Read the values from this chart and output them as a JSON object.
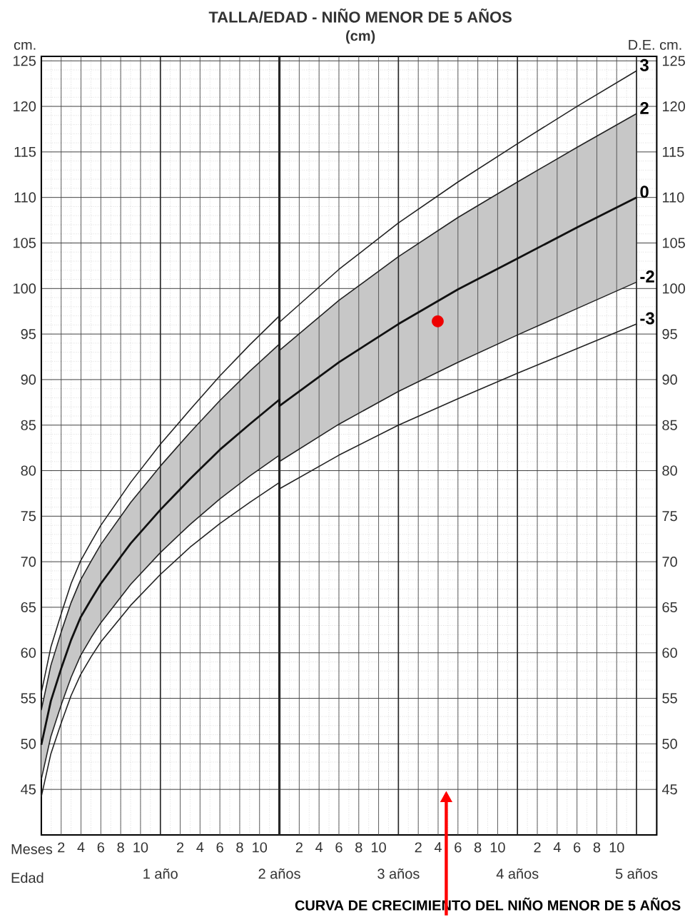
{
  "chart_data": {
    "type": "line",
    "title": "TALLA/EDAD - **NIÑO** MENOR DE 5 AÑOS",
    "subtitle": "(cm)",
    "ylabel": "cm.",
    "y2label": "D.E. cm.",
    "annotations": [
      "Meses",
      "Edad",
      "CURVA DE CRECIMIENTO DEL NIÑO MENOR DE 5 AÑOS",
      "2",
      "4",
      "6",
      "8",
      "10",
      "2",
      "4",
      "6",
      "8",
      "10",
      "2",
      "4",
      "6",
      "8",
      "10",
      "2",
      "4",
      "6",
      "8",
      "10",
      "2",
      "4",
      "6",
      "8",
      "10"
    ],
    "xlim": [
      0,
      5.17
    ],
    "ylim": [
      40,
      125.5
    ],
    "y2lim": [
      40,
      125.5
    ],
    "xticks": [
      {
        "value": 0,
        "label": null
      },
      {
        "value": 1,
        "label": "1 año"
      },
      {
        "value": 2,
        "label": "2 años"
      },
      {
        "value": 3,
        "label": "3 años"
      },
      {
        "value": 4,
        "label": "4 años"
      },
      {
        "value": 5,
        "label": "5 años"
      }
    ],
    "yticks": [
      45,
      50,
      55,
      60,
      65,
      70,
      75,
      80,
      85,
      90,
      95,
      100,
      105,
      110,
      115,
      120,
      125
    ],
    "y2ticks": [
      45,
      50,
      55,
      60,
      65,
      70,
      75,
      80,
      85,
      90,
      95,
      100,
      105,
      110,
      115,
      120,
      125
    ],
    "grid": true,
    "line_style": "solid",
    "ref_lines": [
      {
        "axis": "x",
        "value": 2,
        "color": "#262626"
      }
    ],
    "series": [
      {
        "name": "3",
        "color": "#222222",
        "x": [
          0,
          0.08,
          0.17,
          0.25,
          0.33,
          0.42,
          0.5,
          0.75,
          1,
          1.25,
          1.5,
          1.75,
          2,
          2,
          2.5,
          3,
          3.5,
          4,
          4.5,
          5
        ],
        "values": [
          55.6,
          60.6,
          64.4,
          67.6,
          70.1,
          72.2,
          74.0,
          78.7,
          82.9,
          86.7,
          90.4,
          93.8,
          97.0,
          96.3,
          102.1,
          107.2,
          111.7,
          115.9,
          120.0,
          123.9
        ]
      },
      {
        "name": "2",
        "color": "#222222",
        "x": [
          0,
          0.08,
          0.17,
          0.25,
          0.33,
          0.42,
          0.5,
          0.75,
          1,
          1.25,
          1.5,
          1.75,
          2,
          2,
          2.5,
          3,
          3.5,
          4,
          4.5,
          5
        ],
        "values": [
          53.7,
          58.6,
          62.4,
          65.5,
          68.0,
          70.1,
          71.9,
          76.5,
          80.5,
          84.2,
          87.7,
          90.9,
          93.9,
          93.2,
          98.7,
          103.5,
          107.8,
          111.7,
          115.5,
          119.2
        ]
      },
      {
        "name": "0",
        "color": "#111111",
        "x": [
          0,
          0.08,
          0.17,
          0.25,
          0.33,
          0.42,
          0.5,
          0.75,
          1,
          1.25,
          1.5,
          1.75,
          2,
          2,
          2.5,
          3,
          3.5,
          4,
          4.5,
          5
        ],
        "values": [
          49.9,
          54.7,
          58.4,
          61.4,
          63.9,
          65.9,
          67.6,
          72.0,
          75.7,
          79.1,
          82.3,
          85.1,
          87.8,
          87.1,
          91.9,
          96.1,
          99.9,
          103.3,
          106.7,
          110.0
        ],
        "lower": [
          46.1,
          50.8,
          54.4,
          57.3,
          59.7,
          61.7,
          63.3,
          67.5,
          71.0,
          74.1,
          76.9,
          79.4,
          81.7,
          81.0,
          85.1,
          88.7,
          91.9,
          94.9,
          97.8,
          100.7
        ],
        "upper": [
          53.7,
          58.6,
          62.4,
          65.5,
          68.0,
          70.1,
          71.9,
          76.5,
          80.5,
          84.2,
          87.7,
          90.9,
          93.9,
          93.2,
          98.7,
          103.5,
          107.8,
          111.7,
          115.5,
          119.2
        ]
      },
      {
        "name": "-2",
        "color": "#222222",
        "x": [
          0,
          0.08,
          0.17,
          0.25,
          0.33,
          0.42,
          0.5,
          0.75,
          1,
          1.25,
          1.5,
          1.75,
          2,
          2,
          2.5,
          3,
          3.5,
          4,
          4.5,
          5
        ],
        "values": [
          46.1,
          50.8,
          54.4,
          57.3,
          59.7,
          61.7,
          63.3,
          67.5,
          71.0,
          74.1,
          76.9,
          79.4,
          81.7,
          81.0,
          85.1,
          88.7,
          91.9,
          94.9,
          97.8,
          100.7
        ]
      },
      {
        "name": "-3",
        "color": "#222222",
        "x": [
          0,
          0.08,
          0.17,
          0.25,
          0.33,
          0.42,
          0.5,
          0.75,
          1,
          1.25,
          1.5,
          1.75,
          2,
          2,
          2.5,
          3,
          3.5,
          4,
          4.5,
          5
        ],
        "values": [
          44.2,
          48.9,
          52.4,
          55.3,
          57.6,
          59.6,
          61.2,
          65.2,
          68.6,
          71.6,
          74.2,
          76.5,
          78.7,
          78.0,
          81.7,
          85.0,
          87.9,
          90.7,
          93.4,
          96.1
        ]
      },
      {
        "type": "scatter",
        "color": "#ee0000",
        "x": [
          3.33
        ],
        "values": [
          96.4
        ]
      }
    ]
  }
}
